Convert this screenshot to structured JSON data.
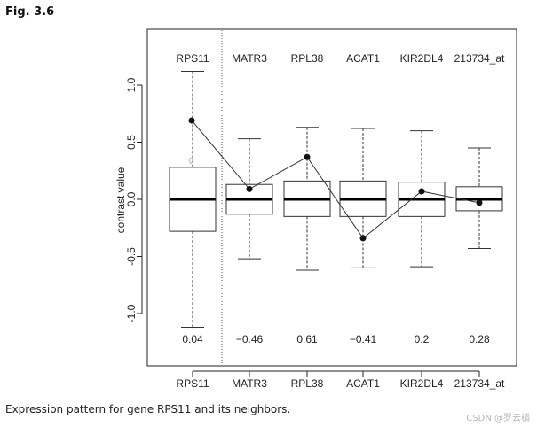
{
  "figure": {
    "label": "Fig. 3.6",
    "caption": "Expression pattern for gene RPS11 and its neighbors.",
    "watermark": "CSDN @罗云楣"
  },
  "chart_data": {
    "type": "box",
    "title": "",
    "xlabel": "",
    "ylabel": "contrast value",
    "ylim": [
      -1.45,
      1.45
    ],
    "yticks": [
      -1.0,
      -0.5,
      0.0,
      0.5,
      1.0
    ],
    "ytick_labels": [
      "-1.0",
      "-0.5",
      "0.0",
      "0.5",
      "1.0"
    ],
    "categories": [
      "RPS11",
      "MATR3",
      "RPL38",
      "ACAT1",
      "KIR2DL4",
      "213734_at"
    ],
    "boxes": [
      {
        "whisker_low": -1.12,
        "q1": -0.28,
        "median": 0.0,
        "q3": 0.28,
        "whisker_high": 1.12,
        "outliers": [
          0.34
        ]
      },
      {
        "whisker_low": -0.52,
        "q1": -0.13,
        "median": 0.0,
        "q3": 0.13,
        "whisker_high": 0.53,
        "outliers": []
      },
      {
        "whisker_low": -0.62,
        "q1": -0.15,
        "median": 0.0,
        "q3": 0.16,
        "whisker_high": 0.63,
        "outliers": []
      },
      {
        "whisker_low": -0.6,
        "q1": -0.15,
        "median": 0.0,
        "q3": 0.16,
        "whisker_high": 0.62,
        "outliers": []
      },
      {
        "whisker_low": -0.59,
        "q1": -0.15,
        "median": 0.0,
        "q3": 0.15,
        "whisker_high": 0.6,
        "outliers": []
      },
      {
        "whisker_low": -0.43,
        "q1": -0.1,
        "median": 0.0,
        "q3": 0.11,
        "whisker_high": 0.45,
        "outliers": []
      }
    ],
    "series": [
      {
        "values": [
          0.69,
          0.09,
          0.37,
          -0.34,
          0.07,
          -0.03
        ]
      }
    ],
    "annotations": [
      "0.04",
      "−0.46",
      "0.61",
      "−0.41",
      "0.2",
      "0.28"
    ],
    "grid": false,
    "separator_after_category": 0
  }
}
